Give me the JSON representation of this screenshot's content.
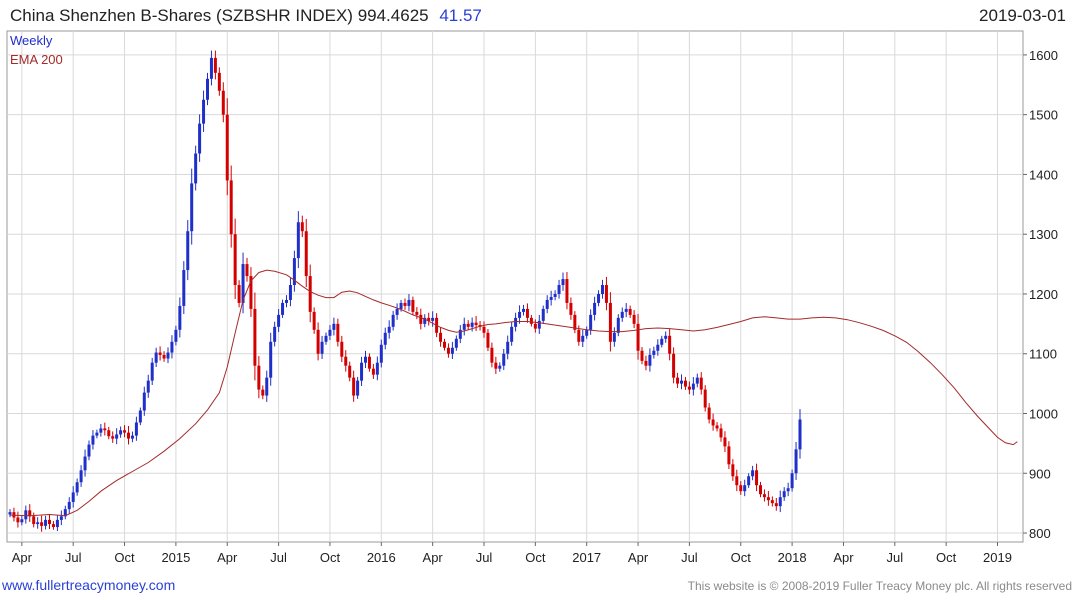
{
  "header": {
    "title": "China Shenzhen B-Shares (SZBSHR INDEX) 994.4625",
    "change": "41.57",
    "date": "2019-03-01"
  },
  "legend": {
    "frequency": "Weekly",
    "indicator": "EMA 200"
  },
  "footer": {
    "website": "www.fullertreacymoney.com",
    "copyright": "This website is © 2008-2019 Fuller Treacy Money plc. All rights reserved"
  },
  "colors": {
    "up": "#1f2fc9",
    "down": "#d40000",
    "ema": "#a52a2a",
    "grid": "#d9d9d9",
    "frame": "#999999"
  },
  "chart_data": {
    "type": "candlestick",
    "title": "China Shenzhen B-Shares (SZBSHR INDEX) 994.4625",
    "frequency": "weekly",
    "ylim": [
      785,
      1640
    ],
    "y_ticks": [
      800,
      900,
      1000,
      1100,
      1200,
      1300,
      1400,
      1500,
      1600
    ],
    "x_ticks": [
      "Apr",
      "Jul",
      "Oct",
      "2015",
      "Apr",
      "Jul",
      "Oct",
      "2016",
      "Apr",
      "Jul",
      "Oct",
      "2017",
      "Apr",
      "Jul",
      "Oct",
      "2018",
      "Apr",
      "Jul",
      "Oct",
      "2019"
    ],
    "x_tick_weeks": [
      3,
      16,
      29,
      42,
      55,
      68,
      81,
      94,
      107,
      120,
      133,
      146,
      159,
      172,
      185,
      198,
      211,
      224,
      237,
      250
    ],
    "grid": true,
    "legend_position": "top-left",
    "series": [
      {
        "name": "Weekly",
        "kind": "candles",
        "close": [
          835,
          826,
          818,
          823,
          838,
          828,
          815,
          818,
          812,
          822,
          815,
          810,
          822,
          828,
          840,
          852,
          868,
          885,
          905,
          928,
          948,
          963,
          968,
          975,
          972,
          962,
          958,
          965,
          972,
          968,
          958,
          963,
          985,
          1005,
          1035,
          1055,
          1085,
          1102,
          1098,
          1092,
          1102,
          1120,
          1140,
          1180,
          1240,
          1305,
          1385,
          1435,
          1485,
          1525,
          1560,
          1595,
          1570,
          1540,
          1500,
          1390,
          1300,
          1215,
          1185,
          1250,
          1230,
          1175,
          1080,
          1040,
          1030,
          1060,
          1120,
          1145,
          1165,
          1185,
          1190,
          1215,
          1260,
          1320,
          1305,
          1230,
          1170,
          1140,
          1100,
          1120,
          1130,
          1140,
          1150,
          1120,
          1095,
          1080,
          1060,
          1030,
          1055,
          1085,
          1095,
          1075,
          1065,
          1085,
          1115,
          1135,
          1145,
          1165,
          1175,
          1185,
          1180,
          1190,
          1170,
          1165,
          1150,
          1160,
          1155,
          1160,
          1135,
          1120,
          1110,
          1100,
          1110,
          1125,
          1140,
          1150,
          1145,
          1152,
          1148,
          1145,
          1135,
          1110,
          1085,
          1075,
          1080,
          1100,
          1120,
          1145,
          1160,
          1170,
          1175,
          1160,
          1150,
          1142,
          1155,
          1175,
          1190,
          1195,
          1200,
          1215,
          1225,
          1185,
          1165,
          1140,
          1120,
          1130,
          1140,
          1165,
          1185,
          1200,
          1215,
          1185,
          1120,
          1135,
          1160,
          1170,
          1175,
          1165,
          1150,
          1105,
          1088,
          1080,
          1098,
          1105,
          1115,
          1125,
          1130,
          1100,
          1060,
          1050,
          1055,
          1045,
          1040,
          1050,
          1060,
          1040,
          1010,
          990,
          980,
          975,
          960,
          945,
          915,
          895,
          880,
          870,
          880,
          895,
          905,
          880,
          865,
          860,
          855,
          850,
          845,
          860,
          870,
          875,
          900,
          940,
          990
        ],
        "open_from_previous_close": true
      },
      {
        "name": "EMA 200",
        "kind": "line",
        "points": [
          [
            0,
            830
          ],
          [
            5,
            829
          ],
          [
            10,
            831
          ],
          [
            14,
            829
          ],
          [
            17,
            838
          ],
          [
            20,
            853
          ],
          [
            23,
            870
          ],
          [
            27,
            888
          ],
          [
            31,
            903
          ],
          [
            35,
            918
          ],
          [
            39,
            937
          ],
          [
            43,
            958
          ],
          [
            47,
            983
          ],
          [
            50,
            1006
          ],
          [
            53,
            1035
          ],
          [
            55,
            1078
          ],
          [
            57,
            1135
          ],
          [
            59,
            1190
          ],
          [
            61,
            1222
          ],
          [
            63,
            1236
          ],
          [
            65,
            1240
          ],
          [
            67,
            1238
          ],
          [
            70,
            1232
          ],
          [
            72,
            1223
          ],
          [
            74,
            1213
          ],
          [
            76,
            1204
          ],
          [
            78,
            1198
          ],
          [
            80,
            1194
          ],
          [
            82,
            1194
          ],
          [
            84,
            1203
          ],
          [
            86,
            1205
          ],
          [
            88,
            1202
          ],
          [
            90,
            1196
          ],
          [
            92,
            1190
          ],
          [
            94,
            1185
          ],
          [
            96,
            1181
          ],
          [
            99,
            1174
          ],
          [
            102,
            1165
          ],
          [
            105,
            1158
          ],
          [
            107,
            1151
          ],
          [
            109,
            1144
          ],
          [
            111,
            1139
          ],
          [
            113,
            1136
          ],
          [
            115,
            1138
          ],
          [
            117,
            1142
          ],
          [
            119,
            1146
          ],
          [
            121,
            1149
          ],
          [
            123,
            1150
          ],
          [
            125,
            1152
          ],
          [
            128,
            1154
          ],
          [
            131,
            1154
          ],
          [
            134,
            1152
          ],
          [
            137,
            1149
          ],
          [
            140,
            1146
          ],
          [
            143,
            1143
          ],
          [
            146,
            1140
          ],
          [
            149,
            1138
          ],
          [
            152,
            1137
          ],
          [
            155,
            1137
          ],
          [
            158,
            1139
          ],
          [
            161,
            1142
          ],
          [
            164,
            1143
          ],
          [
            167,
            1142
          ],
          [
            170,
            1140
          ],
          [
            173,
            1138
          ],
          [
            176,
            1140
          ],
          [
            179,
            1144
          ],
          [
            182,
            1149
          ],
          [
            185,
            1154
          ],
          [
            188,
            1160
          ],
          [
            191,
            1162
          ],
          [
            194,
            1160
          ],
          [
            197,
            1158
          ],
          [
            200,
            1158
          ],
          [
            203,
            1160
          ],
          [
            206,
            1161
          ],
          [
            209,
            1160
          ],
          [
            212,
            1157
          ],
          [
            215,
            1152
          ],
          [
            218,
            1146
          ],
          [
            221,
            1139
          ],
          [
            224,
            1130
          ],
          [
            227,
            1119
          ],
          [
            230,
            1103
          ],
          [
            233,
            1085
          ],
          [
            236,
            1065
          ],
          [
            239,
            1043
          ],
          [
            242,
            1018
          ],
          [
            245,
            995
          ],
          [
            248,
            974
          ],
          [
            250,
            960
          ],
          [
            252,
            951
          ],
          [
            254,
            948
          ],
          [
            255,
            953
          ]
        ]
      }
    ]
  }
}
